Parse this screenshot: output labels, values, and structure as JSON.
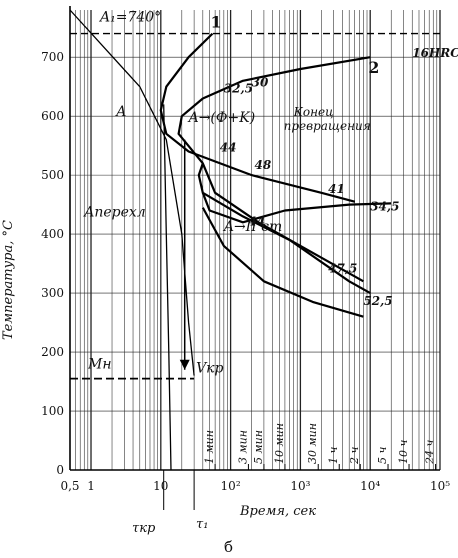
{
  "chart_data": {
    "type": "line",
    "xlabel": "Время, сек",
    "ylabel": "Температура, °C",
    "x_scale": "log",
    "xlim": [
      0.5,
      100000
    ],
    "ylim": [
      0,
      780
    ],
    "x_ticks": [
      {
        "value": 0.5,
        "label": "0,5"
      },
      {
        "value": 1,
        "label": "1"
      },
      {
        "value": 10,
        "label": "10"
      },
      {
        "value": 100,
        "label": "10²"
      },
      {
        "value": 1000,
        "label": "10³"
      },
      {
        "value": 10000,
        "label": "10⁴"
      },
      {
        "value": 100000,
        "label": "10⁵"
      }
    ],
    "y_ticks": [
      0,
      100,
      200,
      300,
      400,
      500,
      600,
      700
    ],
    "time_marks": [
      {
        "value": 60,
        "label": "1 мин"
      },
      {
        "value": 180,
        "label": "3 мин"
      },
      {
        "value": 300,
        "label": "5 мин"
      },
      {
        "value": 600,
        "label": "10 мин"
      },
      {
        "value": 1800,
        "label": "30 мин"
      },
      {
        "value": 3600,
        "label": "1 ч"
      },
      {
        "value": 7200,
        "label": "2 ч"
      },
      {
        "value": 18000,
        "label": "5 ч"
      },
      {
        "value": 36000,
        "label": "10 ч"
      },
      {
        "value": 86400,
        "label": "24 ч"
      }
    ],
    "A1_line": {
      "label": "A₁=740°",
      "value": 740
    },
    "Mn_line": {
      "label": "Mн",
      "value": 155
    },
    "series": [
      {
        "name": "1",
        "points": [
          [
            55,
            740
          ],
          [
            25,
            700
          ],
          [
            12,
            650
          ],
          [
            10,
            610
          ],
          [
            12,
            570
          ],
          [
            25,
            540
          ],
          [
            200,
            500
          ],
          [
            2000,
            470
          ],
          [
            6000,
            455
          ]
        ]
      },
      {
        "name": "2",
        "points": [
          [
            10000,
            700
          ],
          [
            1000,
            680
          ],
          [
            150,
            660
          ],
          [
            40,
            630
          ],
          [
            20,
            600
          ],
          [
            18,
            570
          ],
          [
            40,
            520
          ],
          [
            60,
            470
          ],
          [
            250,
            420
          ],
          [
            2000,
            360
          ],
          [
            8000,
            320
          ]
        ]
      },
      {
        "name": "",
        "points": [
          [
            40,
            520
          ],
          [
            35,
            500
          ],
          [
            40,
            470
          ],
          [
            150,
            430
          ],
          [
            700,
            390
          ],
          [
            5000,
            320
          ],
          [
            10000,
            300
          ]
        ]
      },
      {
        "name": "",
        "points": [
          [
            40,
            470
          ],
          [
            50,
            440
          ],
          [
            150,
            420
          ],
          [
            600,
            440
          ],
          [
            5000,
            450
          ],
          [
            20000,
            452
          ]
        ]
      },
      {
        "name": "",
        "points": [
          [
            40,
            445
          ],
          [
            80,
            380
          ],
          [
            300,
            320
          ],
          [
            1500,
            285
          ],
          [
            8000,
            260
          ]
        ]
      }
    ],
    "cooling_curves": [
      {
        "points": [
          [
            0.5,
            780
          ],
          [
            5,
            650
          ],
          [
            12,
            560
          ],
          [
            20,
            400
          ],
          [
            25,
            250
          ],
          [
            30,
            160
          ]
        ]
      },
      {
        "points": [
          [
            11,
            620
          ],
          [
            12,
            400
          ],
          [
            13,
            200
          ],
          [
            14,
            0
          ]
        ]
      }
    ],
    "hardness_labels": [
      "16HRC",
      "30",
      "32,5",
      "44",
      "48",
      "41",
      "34,5",
      "44",
      "47,5",
      "52,5"
    ],
    "annotations": [
      {
        "text": "A",
        "x": 2.3,
        "y": 600
      },
      {
        "text": "A→(Ф+K)",
        "x": 25,
        "y": 590
      },
      {
        "text": "Конец превращения",
        "x": 800,
        "y": 600
      },
      {
        "text": "Aперехл",
        "x": 0.8,
        "y": 430
      },
      {
        "text": "A→II ст",
        "x": 80,
        "y": 405
      },
      {
        "text": "Vкр",
        "x": 32,
        "y": 165
      }
    ],
    "bottom_labels": {
      "tau_kp": "τкр",
      "tau_1": "τ₁",
      "caption": "б"
    }
  }
}
